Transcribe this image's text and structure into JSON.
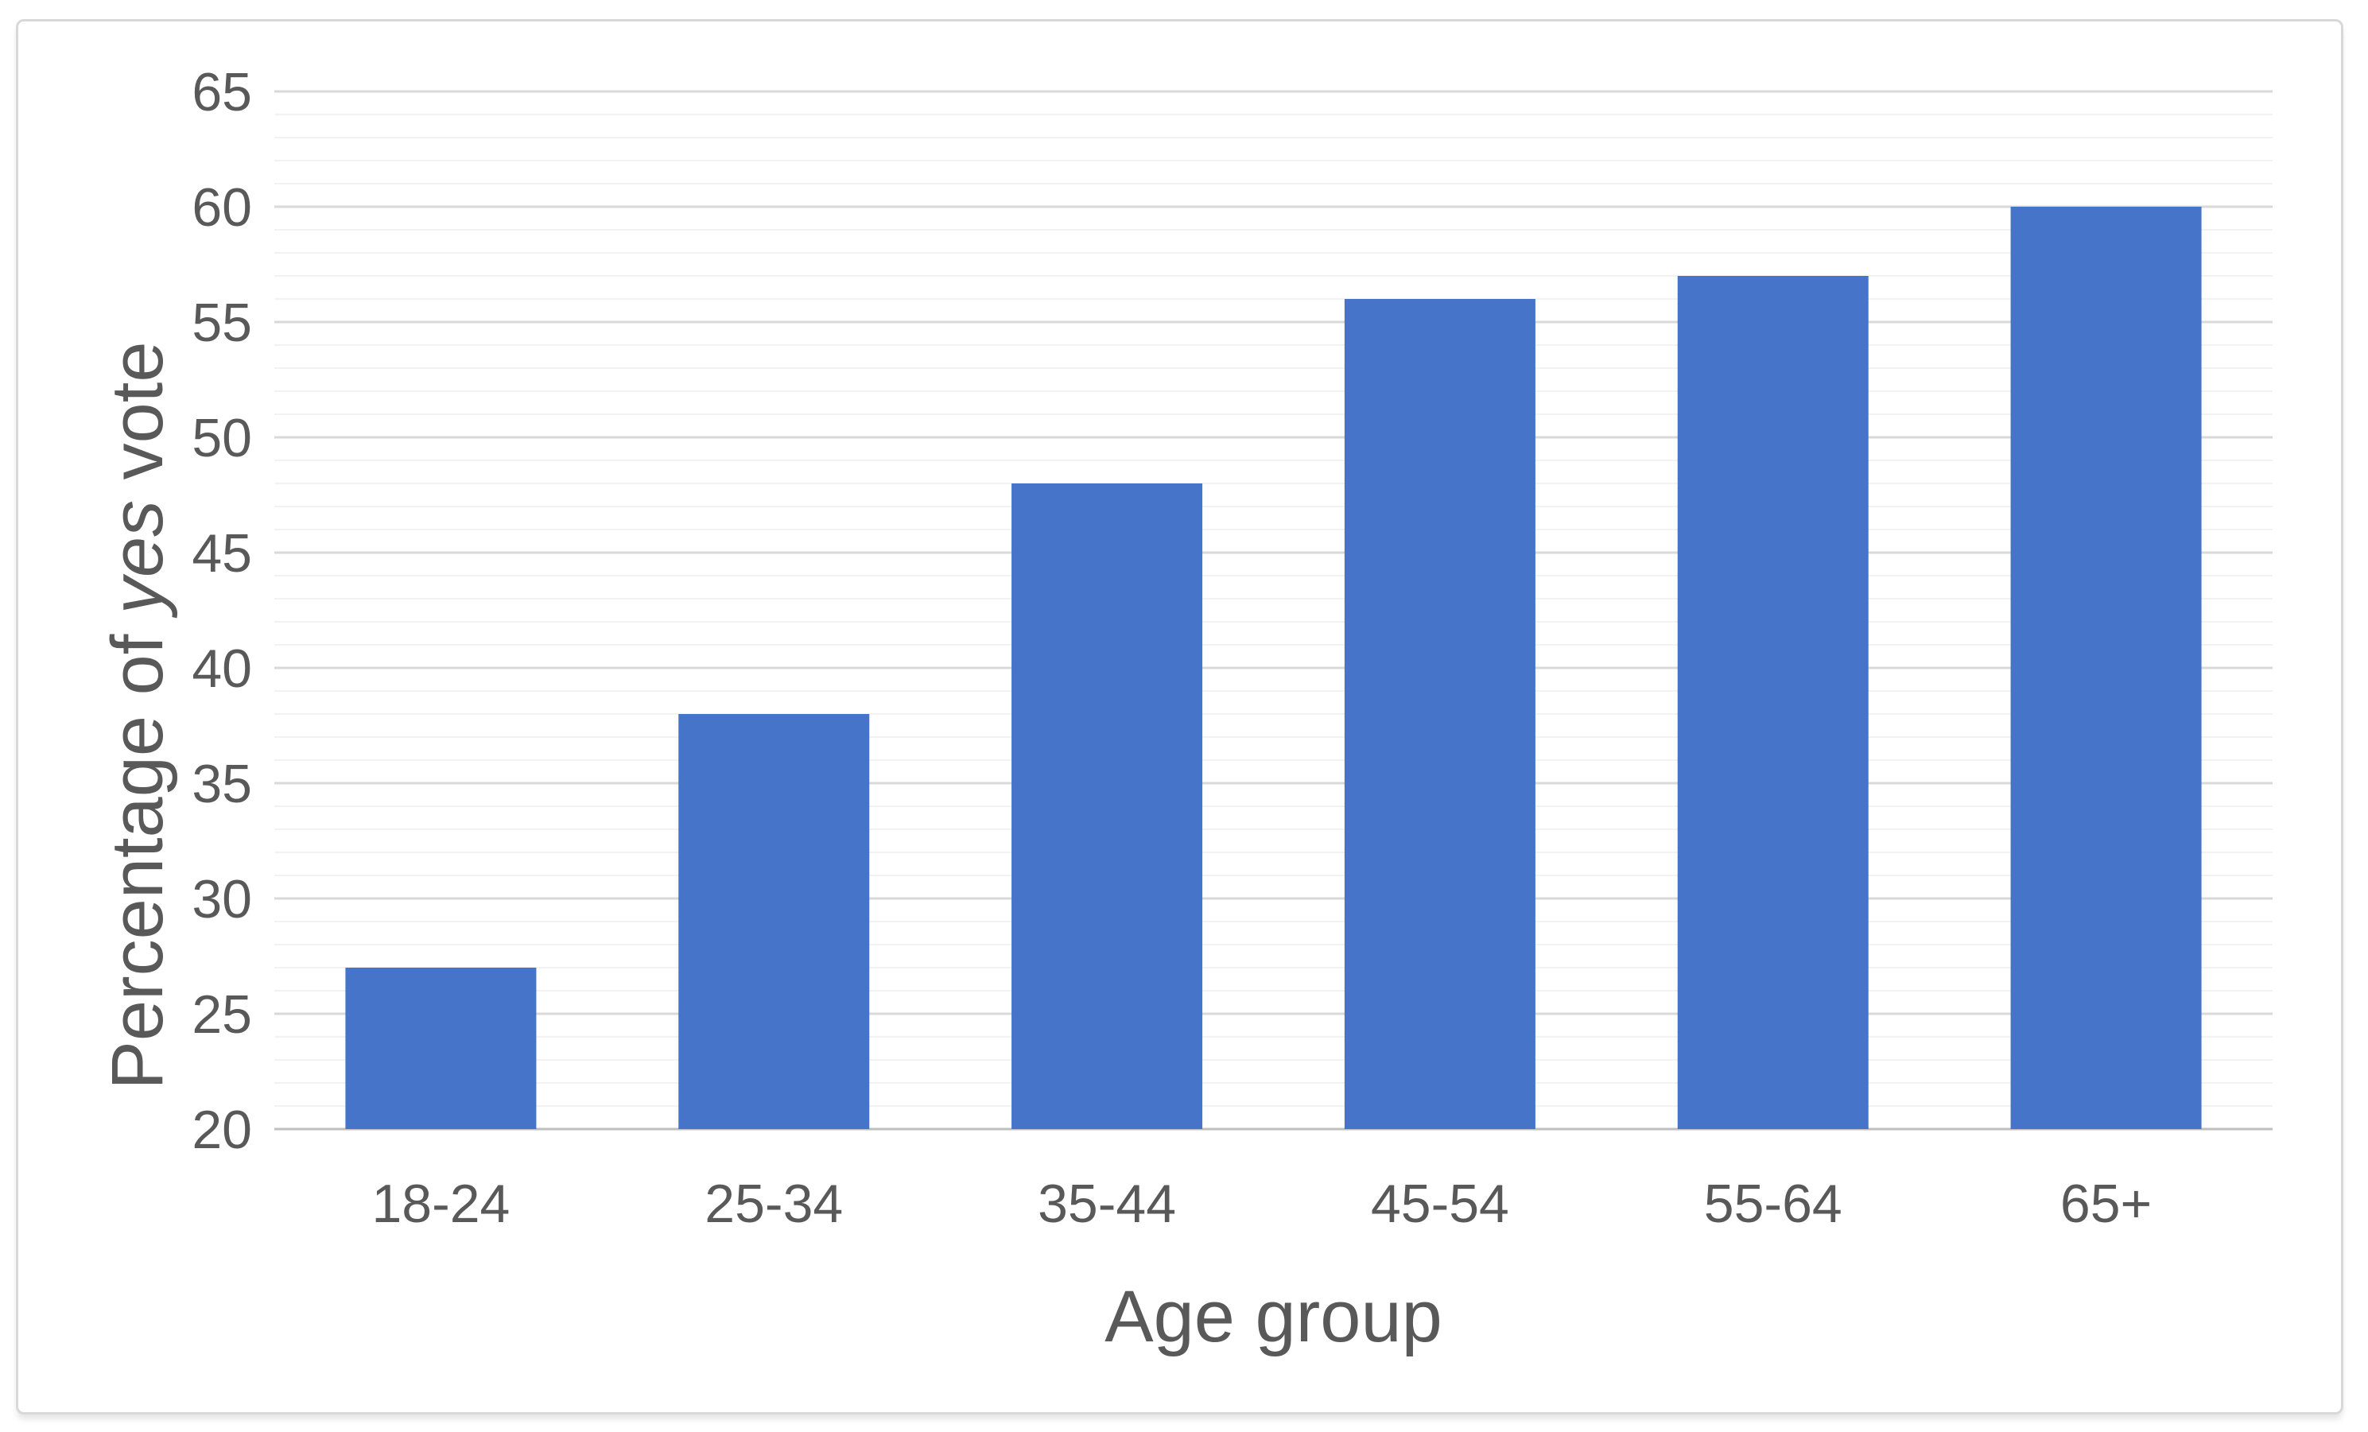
{
  "chart_data": {
    "type": "bar",
    "title": "",
    "categories": [
      "18-24",
      "25-34",
      "35-44",
      "45-54",
      "55-64",
      "65+"
    ],
    "values": [
      27,
      38,
      48,
      56,
      57,
      60
    ],
    "xlabel": "Age group",
    "ylabel": "Percentage of yes vote",
    "ylabel_parts": [
      {
        "text": "Percentage of ",
        "italic": false
      },
      {
        "text": "yes",
        "italic": true
      },
      {
        "text": " vote",
        "italic": false
      }
    ],
    "ylim": [
      20,
      65
    ],
    "ytick_step": 5,
    "yticks": [
      20,
      25,
      30,
      35,
      40,
      45,
      50,
      55,
      60,
      65
    ],
    "minor_gridline_step": 1,
    "grid": true,
    "legend": false,
    "colors": {
      "bar": "#4574C8",
      "major_gridline": "#D9D9D9",
      "minor_gridline": "#F2F2F2",
      "baseline": "#BFBFBF",
      "text": "#595959",
      "frame_border": "#D8D8D8",
      "background": "#FFFFFF"
    }
  }
}
